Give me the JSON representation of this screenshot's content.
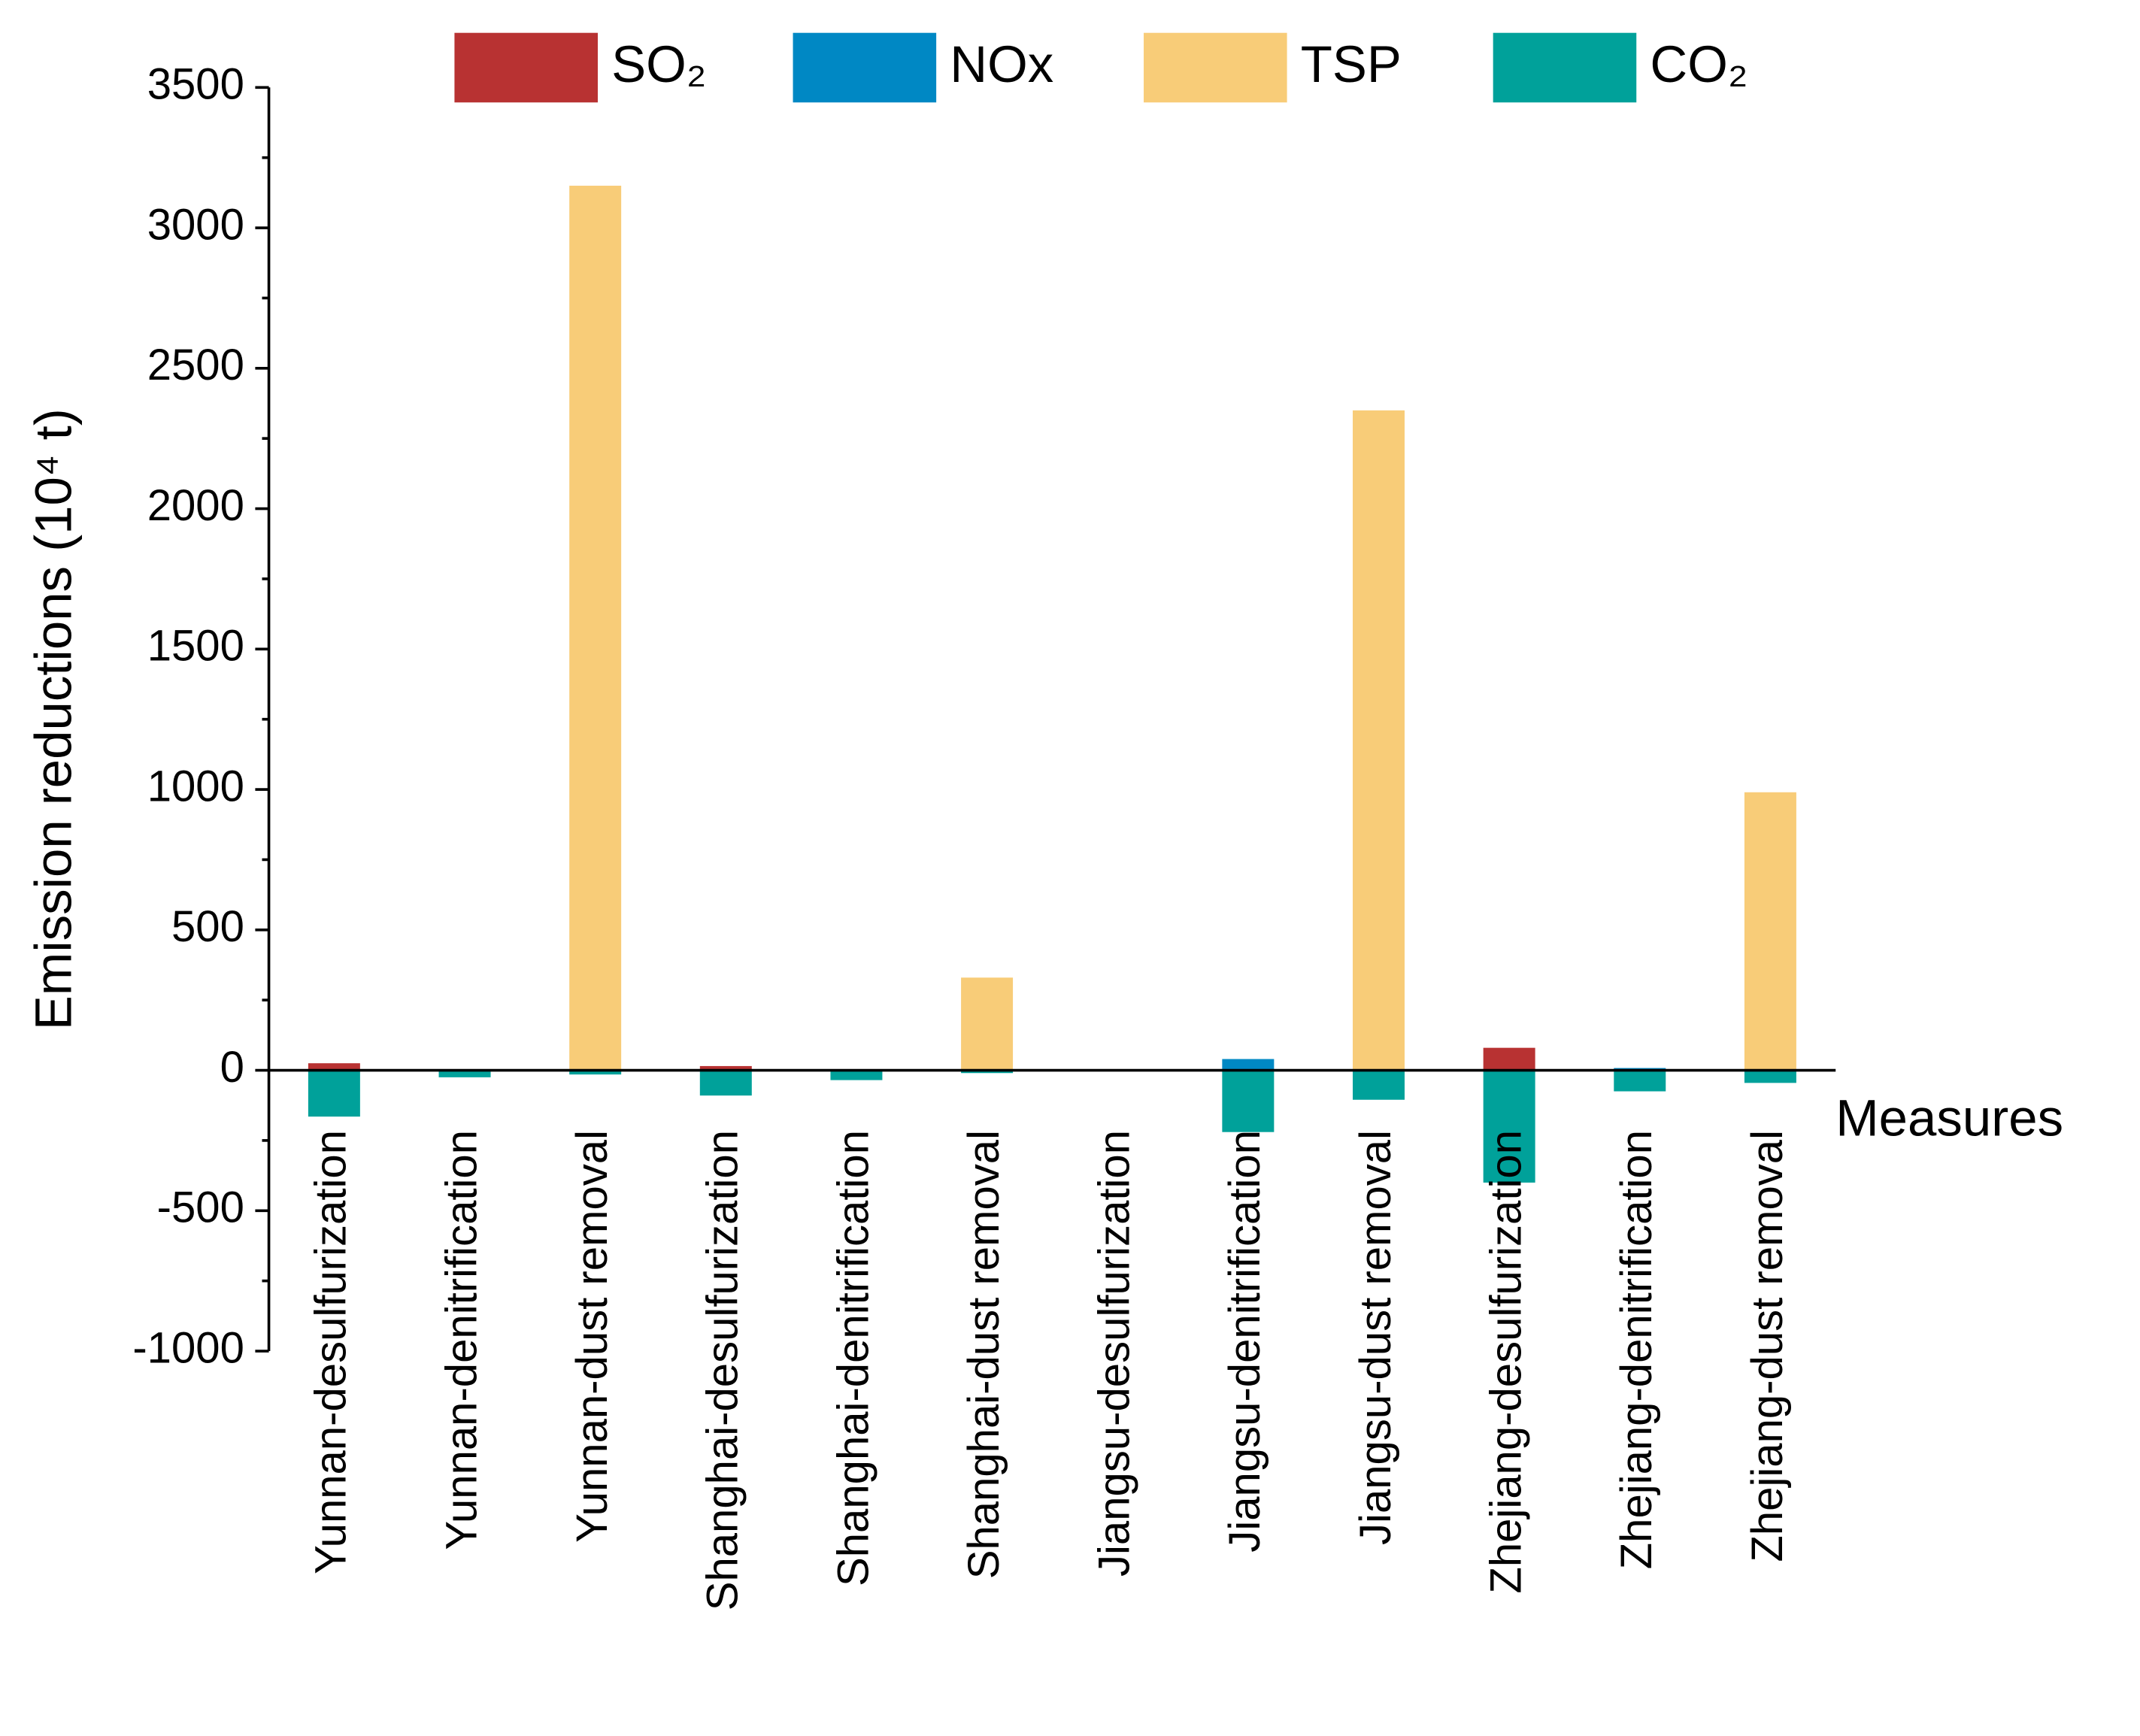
{
  "chart_data": {
    "type": "stacked-bar",
    "y_label": "Emission reductions (10⁴ t)",
    "x_label": "Measures",
    "categories": [
      "Yunnan-desulfurization",
      "Yunnan-denitrification",
      "Yunnan-dust removal",
      "Shanghai-desulfurization",
      "Shanghai-denitrification",
      "Shanghai-dust removal",
      "Jiangsu-desulfurization",
      "Jiangsu-denitrification",
      "Jiangsu-dust removal",
      "Zhejiang-desulfurization",
      "Zhejiang-denitrification",
      "Zhejiang-dust removal"
    ],
    "series": [
      {
        "name": "SO₂",
        "color": "#b83232",
        "values": [
          25,
          0,
          0,
          15,
          0,
          0,
          0,
          0,
          0,
          80,
          0,
          0
        ]
      },
      {
        "name": "NOx",
        "color": "#0088c4",
        "values": [
          0,
          0,
          0,
          0,
          0,
          0,
          0,
          40,
          0,
          0,
          8,
          0
        ]
      },
      {
        "name": "TSP",
        "color": "#f8cc78",
        "values": [
          0,
          0,
          3150,
          0,
          0,
          330,
          0,
          0,
          2350,
          0,
          0,
          990
        ]
      },
      {
        "name": "CO₂",
        "color": "#00a19a",
        "values": [
          -165,
          -25,
          -15,
          -90,
          -35,
          -10,
          0,
          -220,
          -105,
          -400,
          -75,
          -45
        ]
      }
    ],
    "ylim": [
      -1000,
      3500
    ],
    "yticks": [
      -1000,
      -500,
      0,
      500,
      1000,
      1500,
      2000,
      2500,
      3000,
      3500
    ],
    "legend": "top"
  }
}
